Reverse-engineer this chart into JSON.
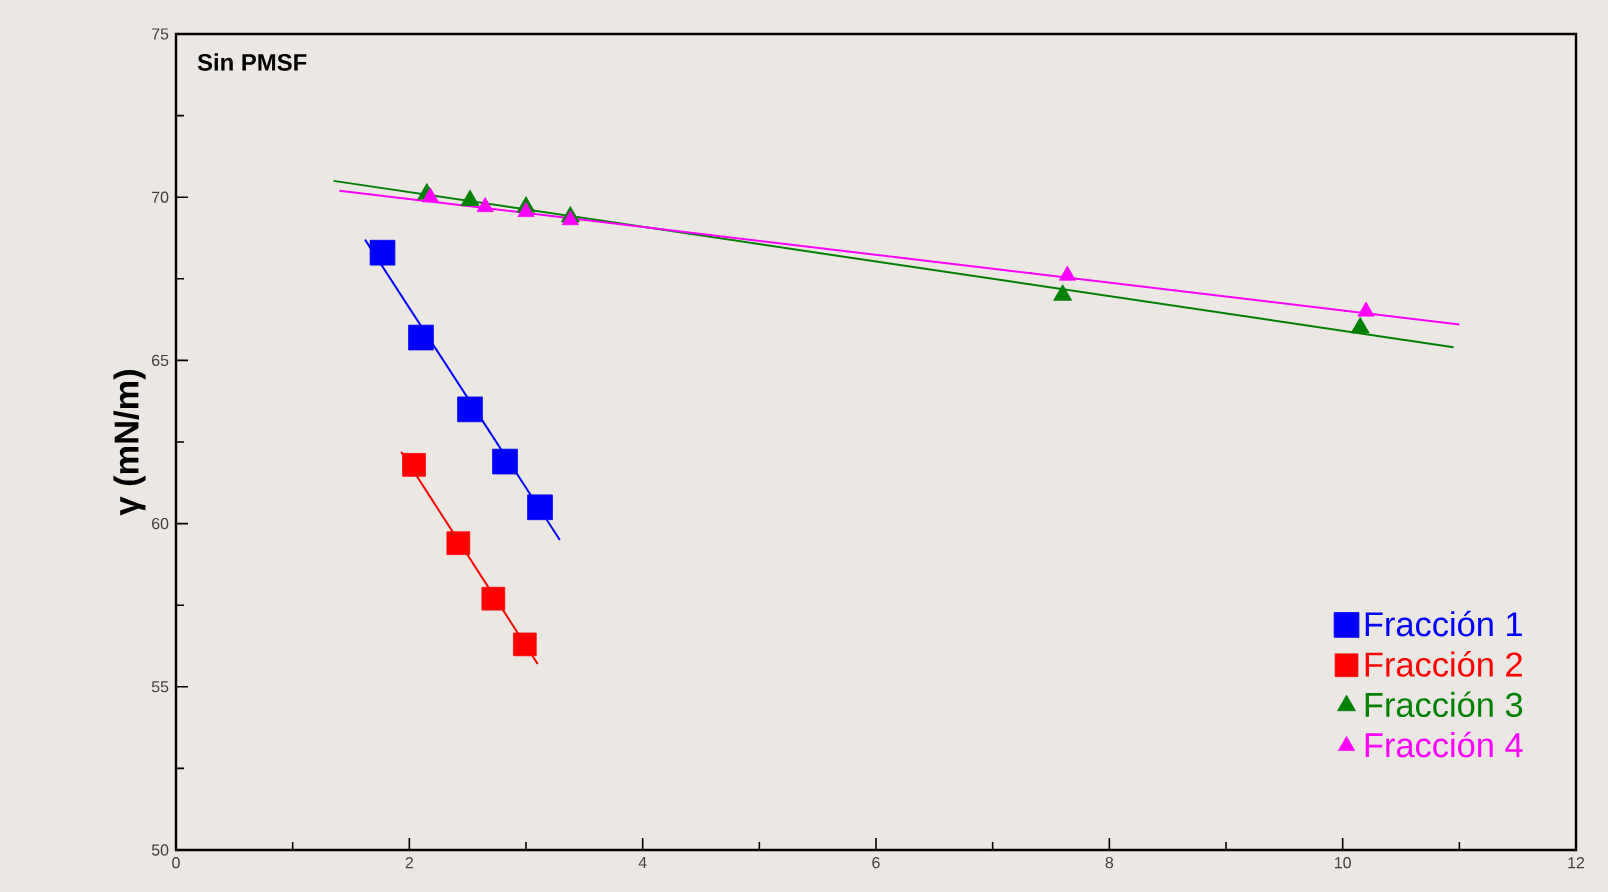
{
  "chart_data": {
    "type": "scatter",
    "title": "Sin PMSF",
    "ylabel": "γ (mN/m)",
    "xlim": [
      0,
      12
    ],
    "xticks": [
      0,
      2,
      4,
      6,
      8,
      10,
      12
    ],
    "ylim": [
      50,
      75
    ],
    "yticks": [
      50,
      55,
      60,
      65,
      70,
      75
    ],
    "grid": false,
    "legend": "bottom right",
    "series": [
      {
        "name": "Fracción 1",
        "color": "#0000ff",
        "marker": "square",
        "x": [
          1.77,
          2.1,
          2.52,
          2.82,
          3.12
        ],
        "values": [
          68.3,
          65.7,
          63.5,
          61.9,
          60.5
        ]
      },
      {
        "name": "Fracción 2",
        "color": "#ff0000",
        "marker": "square",
        "x": [
          2.04,
          2.42,
          2.72,
          2.99
        ],
        "values": [
          61.8,
          59.4,
          57.7,
          56.3
        ]
      },
      {
        "name": "Fracción 3",
        "color": "#008000",
        "marker": "triangle",
        "x": [
          2.15,
          2.52,
          3.0,
          3.38,
          7.6,
          10.15
        ],
        "values": [
          70.1,
          69.9,
          69.7,
          69.4,
          67.0,
          66.0
        ]
      },
      {
        "name": "Fracción 4",
        "color": "#ff00ff",
        "marker": "triangle",
        "x": [
          2.18,
          2.65,
          3.0,
          3.38,
          7.64,
          10.2
        ],
        "values": [
          70.0,
          69.7,
          69.55,
          69.3,
          67.6,
          66.5
        ]
      },
      {
        "type": "line",
        "color": "#0000ff",
        "x": [
          1.62,
          3.29
        ],
        "values": [
          68.7,
          59.5
        ]
      },
      {
        "type": "line",
        "color": "#ff0000",
        "x": [
          1.93,
          3.1
        ],
        "values": [
          62.2,
          55.7
        ]
      },
      {
        "type": "line",
        "color": "#008000",
        "x": [
          1.35,
          10.95
        ],
        "values": [
          70.5,
          65.4
        ]
      },
      {
        "type": "line",
        "color": "#ff00ff",
        "x": [
          1.4,
          11.0
        ],
        "values": [
          70.2,
          66.1
        ]
      }
    ]
  }
}
